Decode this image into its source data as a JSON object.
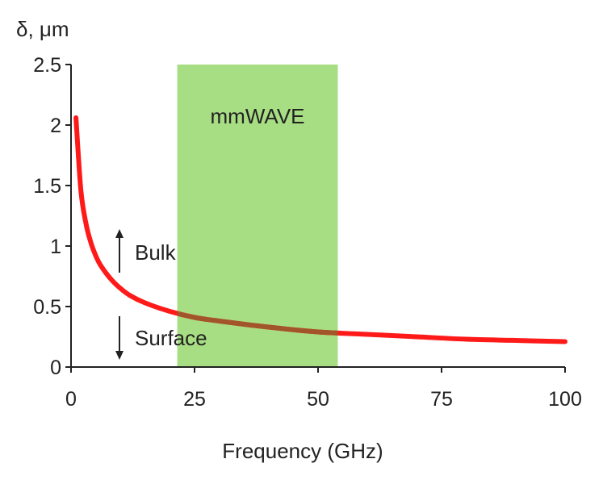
{
  "chart_data": {
    "type": "line",
    "ylabel": "δ, μm",
    "xlabel": "Frequency (GHz)",
    "xlim": [
      0,
      100
    ],
    "ylim": [
      0,
      2.5
    ],
    "x_ticks": [
      0,
      25,
      50,
      75,
      100
    ],
    "y_ticks": [
      0,
      0.5,
      1,
      1.5,
      2,
      2.5
    ],
    "x_tick_labels": [
      "0",
      "25",
      "50",
      "75",
      "100"
    ],
    "y_tick_labels": [
      "0",
      "0.5",
      "1",
      "1.5",
      "2",
      "2.5"
    ],
    "grid": false,
    "series": [
      {
        "color": "#ff1a1a",
        "x": [
          1,
          2,
          3,
          4,
          5,
          6,
          8,
          10,
          12,
          15,
          20,
          25,
          30,
          40,
          50,
          60,
          70,
          80,
          90,
          100
        ],
        "y": [
          2.06,
          1.46,
          1.19,
          1.03,
          0.92,
          0.84,
          0.73,
          0.65,
          0.59,
          0.53,
          0.46,
          0.41,
          0.38,
          0.33,
          0.29,
          0.27,
          0.25,
          0.23,
          0.22,
          0.21
        ]
      }
    ],
    "shaded_region": {
      "label": "mmWAVE",
      "x_range": [
        21.5,
        54
      ],
      "color": "#a8de83"
    },
    "annotations": [
      {
        "text": "Bulk",
        "arrow": "up"
      },
      {
        "text": "Surface",
        "arrow": "down"
      }
    ]
  }
}
